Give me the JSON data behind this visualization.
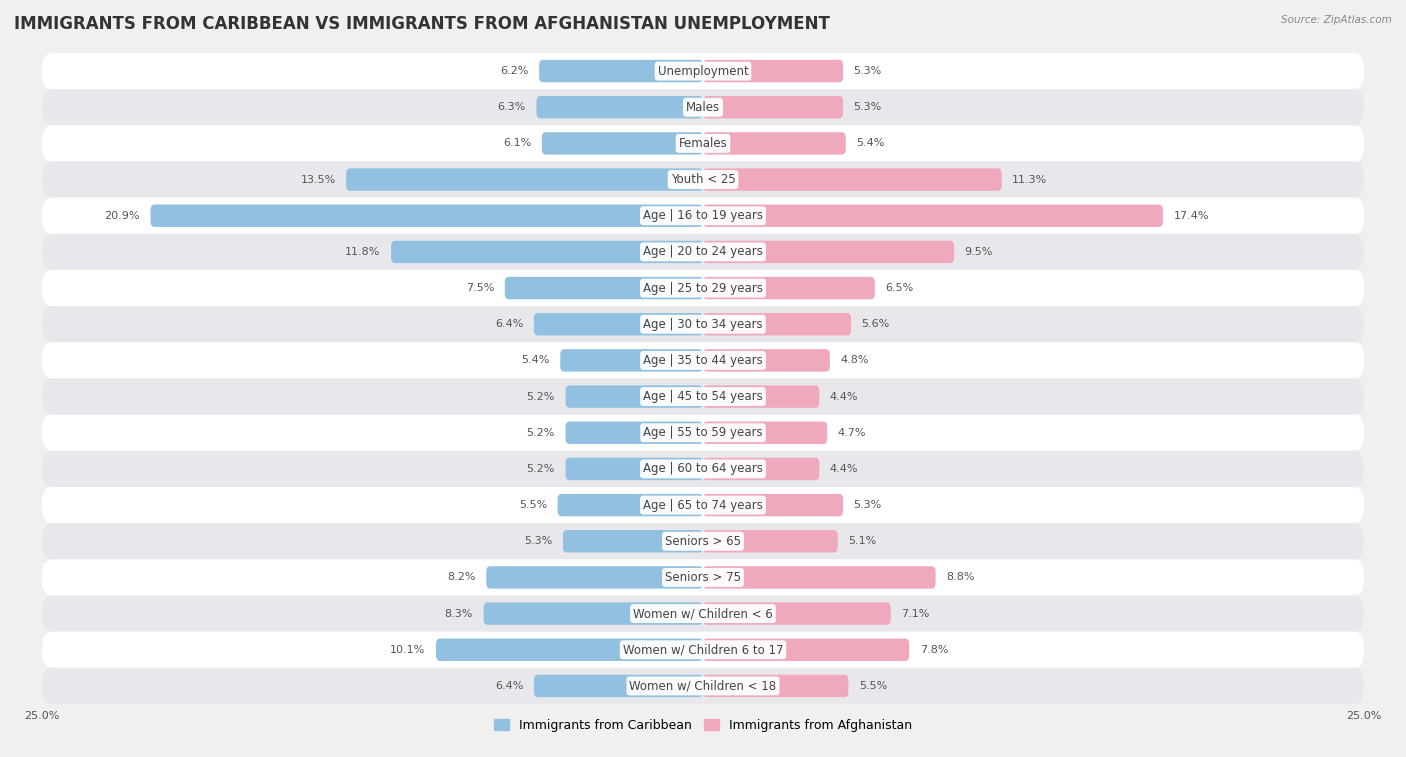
{
  "title": "IMMIGRANTS FROM CARIBBEAN VS IMMIGRANTS FROM AFGHANISTAN UNEMPLOYMENT",
  "source": "Source: ZipAtlas.com",
  "categories": [
    "Unemployment",
    "Males",
    "Females",
    "Youth < 25",
    "Age | 16 to 19 years",
    "Age | 20 to 24 years",
    "Age | 25 to 29 years",
    "Age | 30 to 34 years",
    "Age | 35 to 44 years",
    "Age | 45 to 54 years",
    "Age | 55 to 59 years",
    "Age | 60 to 64 years",
    "Age | 65 to 74 years",
    "Seniors > 65",
    "Seniors > 75",
    "Women w/ Children < 6",
    "Women w/ Children 6 to 17",
    "Women w/ Children < 18"
  ],
  "caribbean_values": [
    6.2,
    6.3,
    6.1,
    13.5,
    20.9,
    11.8,
    7.5,
    6.4,
    5.4,
    5.2,
    5.2,
    5.2,
    5.5,
    5.3,
    8.2,
    8.3,
    10.1,
    6.4
  ],
  "afghanistan_values": [
    5.3,
    5.3,
    5.4,
    11.3,
    17.4,
    9.5,
    6.5,
    5.6,
    4.8,
    4.4,
    4.7,
    4.4,
    5.3,
    5.1,
    8.8,
    7.1,
    7.8,
    5.5
  ],
  "caribbean_color": "#92c0e0",
  "afghanistan_color": "#f0a8bc",
  "caribbean_label": "Immigrants from Caribbean",
  "afghanistan_label": "Immigrants from Afghanistan",
  "xlim": 25.0,
  "axis_label": "25.0%",
  "background_color": "#f0f0f0",
  "row_color_light": "#ffffff",
  "row_color_dark": "#e8e8ec",
  "title_fontsize": 12,
  "label_fontsize": 8.5,
  "value_fontsize": 8
}
